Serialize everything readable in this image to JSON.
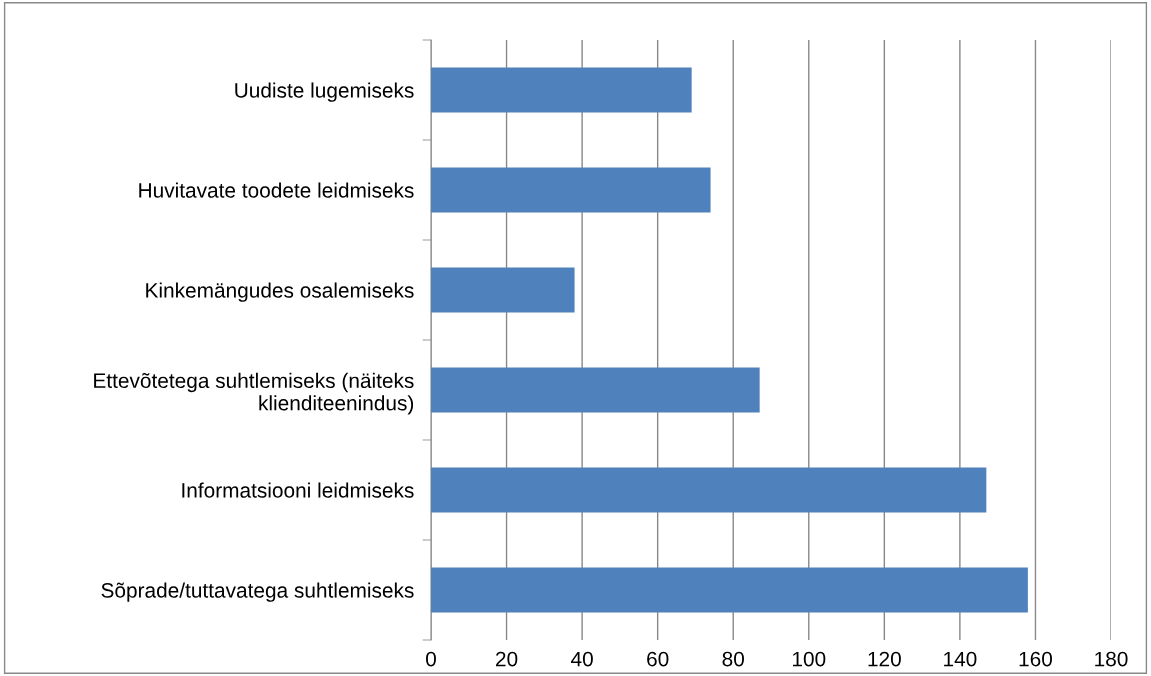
{
  "chart_data": {
    "type": "bar",
    "orientation": "horizontal",
    "categories": [
      "Uudiste lugemiseks",
      "Huvitavate toodete leidmiseks",
      "Kinkemängudes osalemiseks",
      "Ettevõtetega suhtlemiseks (näiteks klienditeenindus)",
      "Informatsiooni leidmiseks",
      "Sõprade/tuttavatega suhtlemiseks"
    ],
    "values": [
      69,
      74,
      38,
      87,
      147,
      158
    ],
    "color": "#4f81bd",
    "xlim": [
      0,
      180
    ],
    "xticks": [
      0,
      20,
      40,
      60,
      80,
      100,
      120,
      140,
      160,
      180
    ],
    "grid": "x",
    "legend": false
  }
}
